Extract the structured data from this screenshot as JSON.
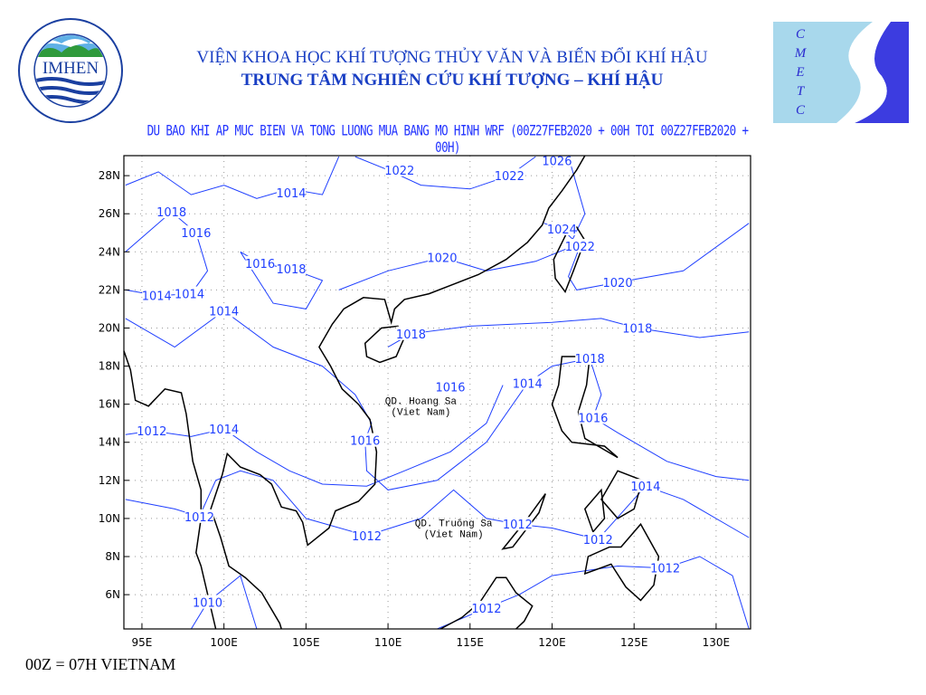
{
  "header": {
    "logo_left": {
      "text": "IMHEN",
      "ring_text": "VIEN KHOA HOC KHI TUONG THUY VAN VA BIEN DOI KHI HAU"
    },
    "logo_right": {
      "text": "CMETC"
    },
    "title_line1": "VIỆN KHOA HỌC KHÍ TƯỢNG THỦY VĂN VÀ BIẾN ĐỔI KHÍ HẬU",
    "title_line2": "TRUNG TÂM NGHIÊN CỨU KHÍ TƯỢNG – KHÍ HẬU",
    "subtitle": "DU BAO KHI AP MUC BIEN VA TONG LUONG MUA BANG MO HINH WRF (00Z27FEB2020 + 00H TOI 00Z27FEB2020 + 00H)"
  },
  "map": {
    "lon_range": [
      93.9,
      132.1
    ],
    "lat_range": [
      4.2,
      29.05
    ],
    "lon_ticks": [
      "95E",
      "100E",
      "105E",
      "110E",
      "115E",
      "120E",
      "125E",
      "130E"
    ],
    "lat_ticks": [
      "6N",
      "8N",
      "10N",
      "12N",
      "14N",
      "16N",
      "18N",
      "20N",
      "22N",
      "24N",
      "26N",
      "28N"
    ],
    "isobar_color": "#1f3fff",
    "coast_color": "#000000",
    "isobar_labels": [
      {
        "text": "1022",
        "lon": 110.7,
        "lat": 28.3
      },
      {
        "text": "1022",
        "lon": 117.4,
        "lat": 28.0
      },
      {
        "text": "1026",
        "lon": 120.3,
        "lat": 28.8
      },
      {
        "text": "1014",
        "lon": 104.1,
        "lat": 27.1
      },
      {
        "text": "1018",
        "lon": 96.8,
        "lat": 26.1
      },
      {
        "text": "1016",
        "lon": 98.3,
        "lat": 25.0
      },
      {
        "text": "1024",
        "lon": 120.6,
        "lat": 25.2
      },
      {
        "text": "1022",
        "lon": 121.7,
        "lat": 24.3
      },
      {
        "text": "1016",
        "lon": 102.2,
        "lat": 23.4
      },
      {
        "text": "1018",
        "lon": 104.1,
        "lat": 23.1
      },
      {
        "text": "1020",
        "lon": 113.3,
        "lat": 23.7
      },
      {
        "text": "1020",
        "lon": 124.0,
        "lat": 22.4
      },
      {
        "text": "1014",
        "lon": 95.9,
        "lat": 21.7
      },
      {
        "text": "1014",
        "lon": 97.9,
        "lat": 21.8
      },
      {
        "text": "1014",
        "lon": 100.0,
        "lat": 20.9
      },
      {
        "text": "1018",
        "lon": 111.4,
        "lat": 19.7
      },
      {
        "text": "1018",
        "lon": 125.2,
        "lat": 20.0
      },
      {
        "text": "1018",
        "lon": 122.3,
        "lat": 18.4
      },
      {
        "text": "1016",
        "lon": 113.8,
        "lat": 16.9
      },
      {
        "text": "1014",
        "lon": 118.5,
        "lat": 17.1
      },
      {
        "text": "1016",
        "lon": 122.5,
        "lat": 15.3
      },
      {
        "text": "1012",
        "lon": 95.6,
        "lat": 14.6
      },
      {
        "text": "1014",
        "lon": 100.0,
        "lat": 14.7
      },
      {
        "text": "1016",
        "lon": 108.6,
        "lat": 14.1
      },
      {
        "text": "1014",
        "lon": 125.7,
        "lat": 11.7
      },
      {
        "text": "1012",
        "lon": 98.5,
        "lat": 10.1
      },
      {
        "text": "1012",
        "lon": 117.9,
        "lat": 9.7
      },
      {
        "text": "1012",
        "lon": 108.7,
        "lat": 9.1
      },
      {
        "text": "1012",
        "lon": 122.8,
        "lat": 8.9
      },
      {
        "text": "1012",
        "lon": 126.9,
        "lat": 7.4
      },
      {
        "text": "1010",
        "lon": 99.0,
        "lat": 5.6
      },
      {
        "text": "1012",
        "lon": 116.0,
        "lat": 5.3
      }
    ],
    "annotations": [
      {
        "line1": "QD. Hoang Sa",
        "line2": "(Viet Nam)",
        "lon": 112.0,
        "lat": 16.0
      },
      {
        "line1": "QD. Truông Sa",
        "line2": "(Viet Nam)",
        "lon": 114.0,
        "lat": 9.6
      }
    ]
  },
  "footer": "00Z = 07H VIETNAM"
}
